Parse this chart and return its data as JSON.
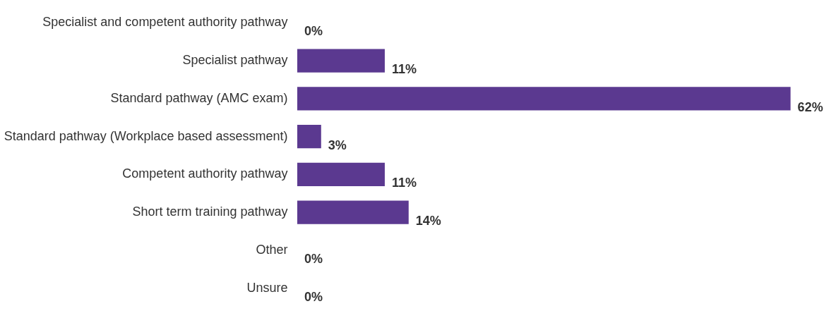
{
  "chart_data": {
    "type": "bar",
    "orientation": "horizontal",
    "categories": [
      "Specialist and competent authority pathway",
      "Specialist pathway",
      "Standard pathway (AMC exam)",
      "Standard pathway (Workplace based assessment)",
      "Competent authority pathway",
      "Short term training pathway",
      "Other",
      "Unsure"
    ],
    "values": [
      0,
      11,
      62,
      3,
      11,
      14,
      0,
      0
    ],
    "value_labels": [
      "0%",
      "11%",
      "62%",
      "3%",
      "11%",
      "14%",
      "0%",
      "0%"
    ],
    "color": "#5b3990"
  }
}
